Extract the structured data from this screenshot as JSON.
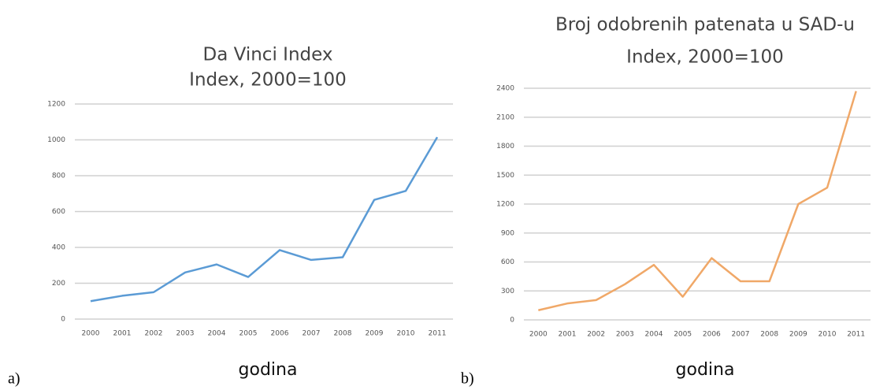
{
  "chart_data": [
    {
      "type": "line",
      "title": "Da Vinci Index",
      "subtitle": "Index, 2000=100",
      "x_label": "godina",
      "panel_label": "a)",
      "categories": [
        "2000",
        "2001",
        "2002",
        "2003",
        "2004",
        "2005",
        "2006",
        "2007",
        "2008",
        "2009",
        "2010",
        "2011"
      ],
      "values": [
        100,
        130,
        150,
        260,
        305,
        235,
        385,
        330,
        345,
        665,
        715,
        1015
      ],
      "color": "#5b9bd5",
      "ylim": [
        0,
        1200
      ],
      "yticks": [
        0,
        200,
        400,
        600,
        800,
        1000,
        1200
      ],
      "grid": true
    },
    {
      "type": "line",
      "title": "Broj odobrenih patenata u SAD-u",
      "subtitle": "Index, 2000=100",
      "x_label": "godina",
      "panel_label": "b)",
      "categories": [
        "2000",
        "2001",
        "2002",
        "2003",
        "2004",
        "2005",
        "2006",
        "2007",
        "2008",
        "2009",
        "2010",
        "2011"
      ],
      "values": [
        100,
        170,
        205,
        370,
        570,
        240,
        640,
        400,
        400,
        1200,
        1370,
        2370
      ],
      "color": "#f0a868",
      "ylim": [
        0,
        2400
      ],
      "yticks": [
        0,
        300,
        600,
        900,
        1200,
        1500,
        1800,
        2100,
        2400
      ],
      "grid": true
    }
  ]
}
